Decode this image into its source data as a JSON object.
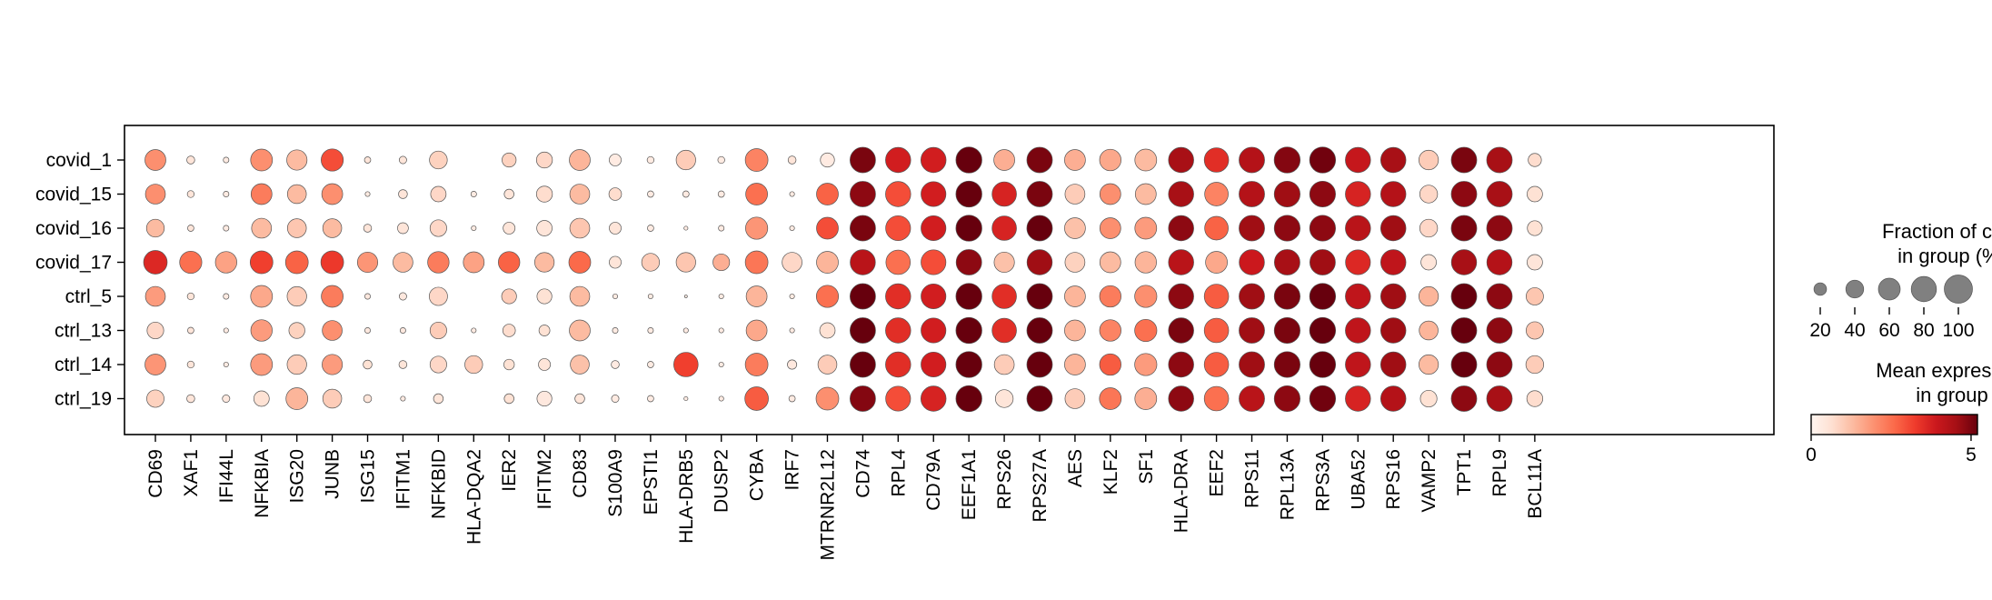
{
  "chart_data": {
    "type": "dotplot",
    "rows": [
      "covid_1",
      "covid_15",
      "covid_16",
      "covid_17",
      "ctrl_5",
      "ctrl_13",
      "ctrl_14",
      "ctrl_19"
    ],
    "genes": [
      "CD69",
      "XAF1",
      "IFI44L",
      "NFKBIA",
      "ISG20",
      "JUNB",
      "ISG15",
      "IFITM1",
      "NFKBID",
      "HLA-DQA2",
      "IER2",
      "IFITM2",
      "CD83",
      "S100A9",
      "EPSTI1",
      "HLA-DRB5",
      "DUSP2",
      "CYBA",
      "IRF7",
      "MTRNR2L12",
      "CD74",
      "RPL4",
      "CD79A",
      "EEF1A1",
      "RPS26",
      "RPS27A",
      "AES",
      "KLF2",
      "SF1",
      "HLA-DRA",
      "EEF2",
      "RPS11",
      "RPL13A",
      "RPS3A",
      "UBA52",
      "RPS16",
      "VAMP2",
      "TPT1",
      "RPL9",
      "BCL11A"
    ],
    "fraction": [
      [
        55,
        8,
        4,
        60,
        52,
        62,
        5,
        7,
        40,
        0,
        25,
        32,
        55,
        18,
        6,
        48,
        6,
        65,
        8,
        25,
        82,
        80,
        80,
        85,
        55,
        82,
        55,
        58,
        60,
        80,
        75,
        82,
        85,
        85,
        80,
        80,
        48,
        82,
        82,
        22
      ],
      [
        50,
        6,
        4,
        55,
        45,
        55,
        3,
        10,
        30,
        4,
        12,
        32,
        50,
        20,
        5,
        5,
        5,
        60,
        3,
        60,
        82,
        80,
        78,
        85,
        75,
        82,
        50,
        55,
        55,
        80,
        70,
        82,
        84,
        84,
        80,
        80,
        40,
        82,
        82,
        30
      ],
      [
        40,
        5,
        4,
        50,
        45,
        45,
        8,
        15,
        35,
        3,
        18,
        30,
        50,
        18,
        5,
        2,
        4,
        62,
        3,
        60,
        82,
        78,
        78,
        85,
        75,
        82,
        55,
        55,
        60,
        80,
        70,
        82,
        84,
        84,
        80,
        80,
        40,
        82,
        82,
        28
      ],
      [
        70,
        62,
        58,
        65,
        65,
        65,
        52,
        50,
        58,
        55,
        58,
        48,
        60,
        18,
        40,
        48,
        35,
        65,
        50,
        60,
        80,
        75,
        78,
        82,
        52,
        80,
        50,
        55,
        58,
        80,
        60,
        80,
        82,
        82,
        78,
        80,
        30,
        80,
        80,
        30
      ],
      [
        50,
        6,
        4,
        60,
        48,
        60,
        4,
        7,
        42,
        0,
        28,
        28,
        50,
        3,
        3,
        1,
        3,
        55,
        3,
        62,
        82,
        80,
        78,
        85,
        75,
        82,
        55,
        58,
        62,
        80,
        75,
        82,
        84,
        85,
        80,
        80,
        48,
        82,
        82,
        38
      ],
      [
        35,
        5,
        3,
        58,
        32,
        50,
        4,
        4,
        35,
        3,
        20,
        15,
        55,
        4,
        4,
        3,
        3,
        55,
        3,
        30,
        82,
        80,
        78,
        85,
        75,
        82,
        55,
        58,
        62,
        80,
        75,
        82,
        84,
        85,
        80,
        80,
        45,
        82,
        82,
        38
      ],
      [
        55,
        6,
        3,
        60,
        48,
        52,
        10,
        8,
        35,
        40,
        14,
        18,
        45,
        8,
        5,
        75,
        3,
        65,
        11,
        45,
        82,
        80,
        78,
        85,
        50,
        82,
        55,
        58,
        62,
        80,
        75,
        82,
        84,
        85,
        80,
        80,
        48,
        82,
        82,
        40
      ],
      [
        38,
        8,
        7,
        30,
        60,
        45,
        8,
        3,
        12,
        0,
        12,
        28,
        12,
        7,
        5,
        2,
        3,
        70,
        5,
        65,
        82,
        78,
        80,
        85,
        40,
        82,
        50,
        60,
        60,
        80,
        75,
        82,
        84,
        85,
        80,
        80,
        35,
        82,
        82,
        32
      ]
    ],
    "expression": [
      [
        2.0,
        0.5,
        0.3,
        2.0,
        1.3,
        3.0,
        0.5,
        0.5,
        0.9,
        0,
        0.9,
        0.8,
        1.4,
        0.3,
        0.3,
        1.0,
        0.3,
        2.2,
        0.5,
        0.3,
        5.0,
        3.8,
        3.8,
        6.0,
        1.5,
        5.0,
        1.5,
        1.6,
        1.3,
        4.5,
        3.5,
        4.3,
        4.9,
        5.1,
        4.0,
        4.5,
        1.0,
        5.0,
        4.5,
        0.7
      ],
      [
        2.0,
        0.5,
        0.3,
        2.3,
        1.3,
        2.0,
        0.3,
        0.5,
        0.8,
        0.3,
        0.5,
        0.7,
        1.3,
        0.7,
        0.3,
        0.3,
        0.3,
        2.5,
        0.3,
        2.7,
        4.8,
        3.0,
        3.8,
        5.3,
        3.7,
        5.0,
        1.0,
        2.0,
        1.3,
        4.5,
        2.2,
        4.3,
        4.6,
        4.8,
        3.7,
        4.3,
        0.8,
        4.8,
        4.5,
        0.6
      ],
      [
        1.3,
        0.5,
        0.3,
        1.3,
        1.1,
        1.3,
        0.5,
        0.5,
        0.8,
        0.3,
        0.5,
        0.5,
        1.1,
        0.5,
        0.3,
        0.3,
        0.3,
        1.9,
        0.3,
        3.0,
        5.0,
        3.0,
        3.8,
        5.4,
        3.7,
        5.4,
        1.2,
        2.0,
        1.8,
        4.8,
        2.7,
        4.6,
        4.8,
        4.8,
        4.2,
        4.6,
        0.8,
        5.0,
        4.8,
        0.6
      ],
      [
        3.6,
        2.5,
        1.7,
        3.2,
        2.7,
        3.3,
        1.9,
        1.3,
        2.3,
        1.7,
        2.7,
        1.3,
        2.6,
        0.5,
        1.0,
        1.1,
        1.5,
        2.4,
        0.8,
        1.4,
        4.2,
        2.5,
        3.0,
        4.8,
        1.2,
        4.6,
        0.9,
        1.3,
        1.4,
        4.2,
        1.6,
        3.9,
        4.5,
        4.6,
        3.6,
        4.1,
        0.5,
        4.5,
        4.3,
        0.5
      ],
      [
        1.8,
        0.5,
        0.3,
        1.6,
        1.0,
        2.3,
        0.4,
        0.4,
        0.8,
        0,
        1.0,
        0.6,
        1.3,
        0.3,
        0.3,
        0.3,
        0.3,
        1.4,
        0.3,
        2.5,
        5.6,
        3.5,
        3.8,
        6.0,
        3.5,
        5.2,
        1.4,
        2.3,
        2.0,
        4.8,
        2.8,
        4.6,
        5.0,
        5.3,
        4.1,
        4.6,
        1.4,
        5.3,
        4.8,
        1.1
      ],
      [
        0.8,
        0.5,
        0.3,
        1.8,
        0.9,
        2.0,
        0.4,
        0.4,
        1.0,
        0.3,
        0.7,
        0.6,
        1.3,
        0.3,
        0.3,
        0.3,
        0.3,
        1.6,
        0.3,
        0.6,
        5.8,
        3.5,
        3.8,
        6.0,
        3.5,
        5.3,
        1.4,
        2.2,
        2.5,
        5.0,
        2.8,
        4.6,
        5.0,
        5.3,
        4.1,
        4.6,
        1.4,
        5.3,
        4.8,
        1.1
      ],
      [
        1.9,
        0.5,
        0.3,
        1.8,
        1.0,
        1.8,
        0.6,
        0.5,
        0.8,
        1.0,
        0.6,
        0.5,
        1.2,
        0.3,
        0.3,
        3.2,
        0.3,
        2.3,
        0.4,
        1.0,
        5.5,
        3.5,
        3.8,
        6.0,
        1.0,
        5.2,
        1.4,
        2.8,
        1.8,
        4.8,
        2.8,
        4.6,
        5.0,
        5.3,
        4.1,
        4.6,
        1.3,
        5.3,
        4.8,
        1.0
      ],
      [
        0.9,
        0.5,
        0.4,
        0.6,
        1.4,
        1.0,
        0.5,
        0.3,
        0.5,
        0,
        0.6,
        0.4,
        0.5,
        0.3,
        0.3,
        0.3,
        0.3,
        2.8,
        0.3,
        2.0,
        4.9,
        3.0,
        3.7,
        5.6,
        0.5,
        5.2,
        1.0,
        2.4,
        1.5,
        4.8,
        2.5,
        4.2,
        4.8,
        5.1,
        3.7,
        4.3,
        0.6,
        4.8,
        4.5,
        0.7
      ]
    ],
    "size_legend_title": "Fraction of cells\nin group (%)",
    "size_legend_values": [
      20,
      40,
      60,
      80,
      100
    ],
    "color_legend_title": "Mean expression\nin group",
    "color_range": [
      0,
      5.2
    ],
    "color_ticks": [
      0,
      5
    ],
    "colormap": "Reds",
    "colors": [
      "#fff5f0",
      "#fee0d2",
      "#fcbba1",
      "#fc9272",
      "#fb6a4a",
      "#ef3b2c",
      "#cb181d",
      "#a50f15",
      "#67000d"
    ]
  }
}
